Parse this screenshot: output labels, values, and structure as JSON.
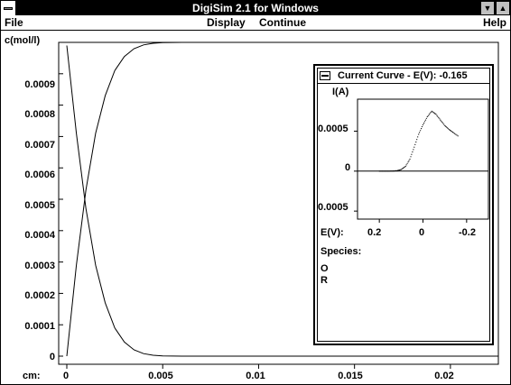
{
  "window": {
    "title": "DigiSim  2.1 for Windows",
    "minimize_glyph": "▼",
    "maximize_glyph": "▲"
  },
  "menu": {
    "file": "File",
    "display": "Display",
    "continue": "Continue",
    "help": "Help"
  },
  "main_plot": {
    "y_axis_label": "c(mol/l)",
    "x_axis_label": "cm:",
    "y_ticks": [
      "0.0009",
      "0.0008",
      "0.0007",
      "0.0006",
      "0.0005",
      "0.0004",
      "0.0003",
      "0.0002",
      "0.0001",
      "0"
    ],
    "x_ticks": [
      "0",
      "0.005",
      "0.01",
      "0.015",
      "0.02"
    ]
  },
  "inset": {
    "title": "Current Curve - E(V): -0.165",
    "y_axis_label": "I(A)",
    "y_ticks": [
      "0.0005",
      "0",
      "0.0005"
    ],
    "x_axis_label": "E(V):",
    "x_ticks": [
      "0.2",
      "0",
      "-0.2"
    ],
    "species_label": "Species:",
    "species": [
      "O",
      "R"
    ]
  },
  "chart_data": [
    {
      "type": "line",
      "title": "",
      "xlabel": "cm:",
      "ylabel": "c(mol/l)",
      "xlim": [
        0,
        0.0225
      ],
      "ylim": [
        0,
        0.001
      ],
      "x": [
        0,
        0.0005,
        0.001,
        0.0015,
        0.002,
        0.0025,
        0.003,
        0.0035,
        0.004,
        0.0045,
        0.005,
        0.006,
        0.007,
        0.008,
        0.009,
        0.01,
        0.012,
        0.014,
        0.016,
        0.018,
        0.02,
        0.022
      ],
      "series": [
        {
          "name": "O",
          "values": [
            0.00099,
            0.00071,
            0.00047,
            0.00029,
            0.00017,
            9e-05,
            4.5e-05,
            2e-05,
            8e-06,
            3e-06,
            1e-06,
            0,
            0,
            0,
            0,
            0,
            0,
            0,
            0,
            0,
            0,
            0
          ]
        },
        {
          "name": "R",
          "values": [
            0,
            0.00029,
            0.00053,
            0.00071,
            0.00083,
            0.00091,
            0.000955,
            0.00098,
            0.000992,
            0.000997,
            0.000999,
            0.001,
            0.001,
            0.001,
            0.001,
            0.001,
            0.001,
            0.001,
            0.001,
            0.001,
            0.001,
            0.001
          ]
        }
      ],
      "grid": false
    },
    {
      "type": "scatter",
      "title": "Current Curve - E(V): -0.165",
      "xlabel": "E(V):",
      "ylabel": "I(A)",
      "xlim": [
        0.3,
        -0.3
      ],
      "ylim": [
        -0.0006,
        0.0009
      ],
      "x": [
        0.2,
        0.18,
        0.16,
        0.14,
        0.12,
        0.1,
        0.08,
        0.06,
        0.04,
        0.02,
        0.0,
        -0.02,
        -0.04,
        -0.06,
        -0.08,
        -0.1,
        -0.12,
        -0.14,
        -0.165
      ],
      "values": [
        0,
        0,
        0,
        1e-06,
        5e-06,
        2e-05,
        6e-05,
        0.00015,
        0.0003,
        0.00046,
        0.00058,
        0.00068,
        0.00075,
        0.00071,
        0.00064,
        0.00057,
        0.00052,
        0.00048,
        0.00043
      ],
      "grid": false
    }
  ]
}
